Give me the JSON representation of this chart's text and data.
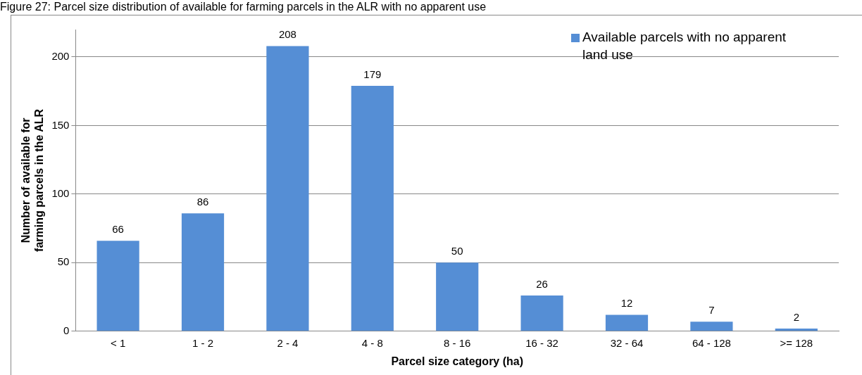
{
  "chart_data": {
    "type": "bar",
    "title": "Figure 27:   Parcel size distribution of available for farming parcels in the ALR with no apparent use",
    "xlabel": "Parcel size category (ha)",
    "ylabel": "Number of available for farming parcels in the ALR",
    "categories": [
      "< 1",
      "1 - 2",
      "2 - 4",
      "4 - 8",
      "8 - 16",
      "16 - 32",
      "32 - 64",
      "64 - 128",
      ">= 128"
    ],
    "series": [
      {
        "name": "Available parcels with no apparent land use",
        "color": "#558ed5",
        "values": [
          66,
          86,
          208,
          179,
          50,
          26,
          12,
          7,
          2
        ]
      }
    ],
    "ylim": [
      0,
      220
    ],
    "yticks": [
      0,
      50,
      100,
      150,
      200
    ],
    "grid": "y",
    "legend": "top right",
    "data_labels": true
  }
}
